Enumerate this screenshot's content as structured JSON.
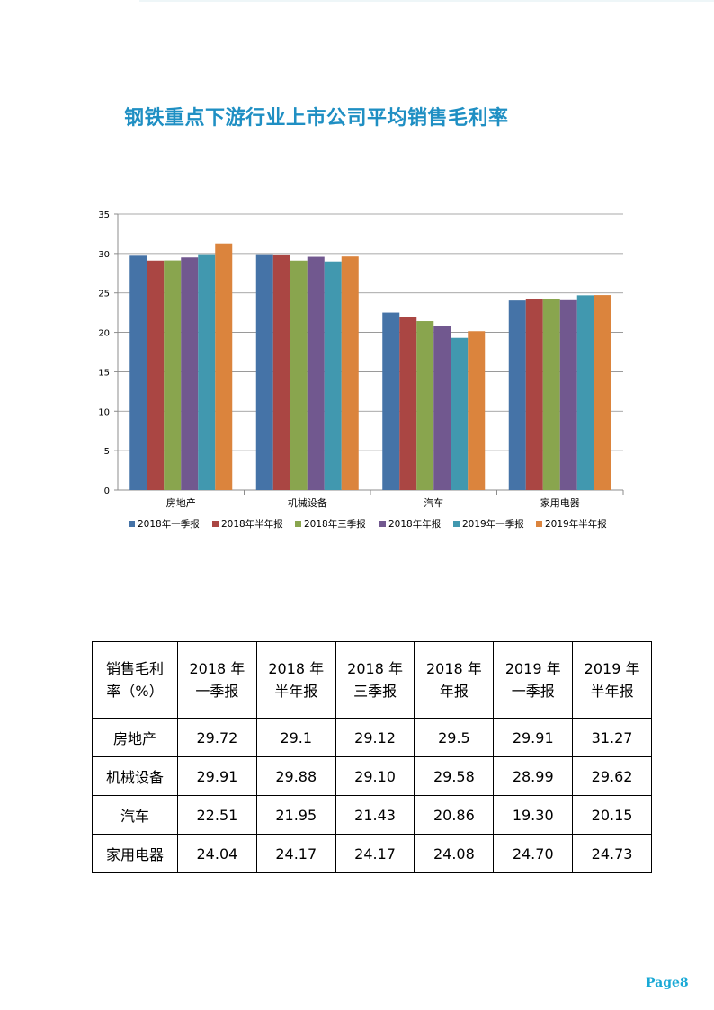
{
  "title": "钢铁重点下游行业上市公司平均销售毛利率",
  "colors": {
    "title": "#1f8fc3",
    "page_number": "#19a9d6",
    "series": [
      "#4573a7",
      "#aa4643",
      "#89a54e",
      "#71588f",
      "#4198af",
      "#db843d"
    ]
  },
  "chart_data": {
    "type": "bar",
    "categories": [
      "房地产",
      "机械设备",
      "汽车",
      "家用电器"
    ],
    "series": [
      {
        "name": "2018年一季报",
        "values": [
          29.72,
          29.91,
          22.51,
          24.04
        ]
      },
      {
        "name": "2018年半年报",
        "values": [
          29.1,
          29.88,
          21.95,
          24.17
        ]
      },
      {
        "name": "2018年三季报",
        "values": [
          29.12,
          29.1,
          21.43,
          24.17
        ]
      },
      {
        "name": "2018年年报",
        "values": [
          29.5,
          29.58,
          20.86,
          24.08
        ]
      },
      {
        "name": "2019年一季报",
        "values": [
          29.91,
          28.99,
          19.3,
          24.7
        ]
      },
      {
        "name": "2019年半年报",
        "values": [
          31.27,
          29.62,
          20.15,
          24.73
        ]
      }
    ],
    "ylim": [
      0,
      35
    ],
    "yticks": [
      0,
      5,
      10,
      15,
      20,
      25,
      30,
      35
    ],
    "grid": true,
    "legend": "bottom"
  },
  "table": {
    "header": {
      "first": [
        "销售毛利",
        "率（%）"
      ],
      "cols": [
        [
          "2018 年",
          "一季报"
        ],
        [
          "2018 年",
          "半年报"
        ],
        [
          "2018 年",
          "三季报"
        ],
        [
          "2018 年",
          "年报"
        ],
        [
          "2019 年",
          "一季报"
        ],
        [
          "2019 年",
          "半年报"
        ]
      ]
    },
    "rows": [
      {
        "label": "房地产",
        "values": [
          "29.72",
          "29.1",
          "29.12",
          "29.5",
          "29.91",
          "31.27"
        ]
      },
      {
        "label": "机械设备",
        "values": [
          "29.91",
          "29.88",
          "29.10",
          "29.58",
          "28.99",
          "29.62"
        ]
      },
      {
        "label": "汽车",
        "values": [
          "22.51",
          "21.95",
          "21.43",
          "20.86",
          "19.30",
          "20.15"
        ]
      },
      {
        "label": "家用电器",
        "values": [
          "24.04",
          "24.17",
          "24.17",
          "24.08",
          "24.70",
          "24.73"
        ]
      }
    ]
  },
  "page_number": "Page8"
}
